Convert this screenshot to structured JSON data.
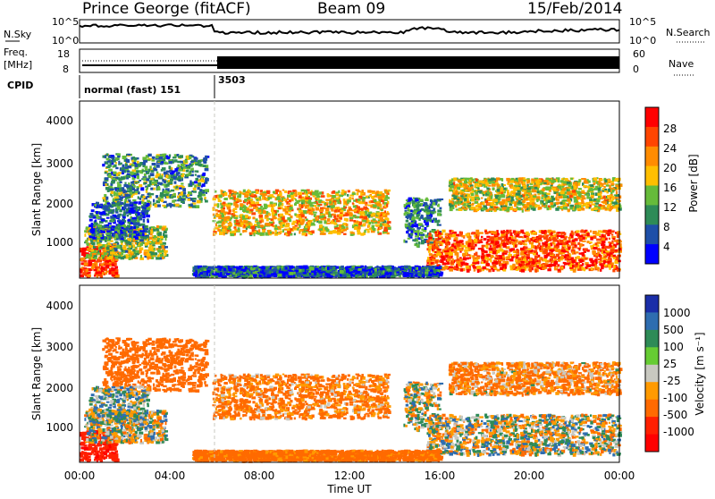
{
  "header": {
    "station": "Prince George (fitACF)",
    "beam": "Beam 09",
    "date": "15/Feb/2014"
  },
  "colors": {
    "power_scale": [
      "#0000ff",
      "#1e4fa8",
      "#2e8b57",
      "#66bb3a",
      "#ffbf00",
      "#ff8c00",
      "#ff4500",
      "#ff0000"
    ],
    "velocity_scale": [
      "#1a2ea8",
      "#2e6db0",
      "#2e8b57",
      "#66cc33",
      "#c8c8c0",
      "#ff9a00",
      "#ff6a00",
      "#ff2000",
      "#ff0000"
    ],
    "ground_scatter": "#c8c8c0"
  },
  "top_panels": {
    "nsky_label": "N.Sky",
    "nsearch_label": "N.Search",
    "noise_ticks": [
      "10^5",
      "10^0"
    ],
    "freq_label_1": "Freq.",
    "freq_label_2": "[MHz]",
    "freq_ticks": [
      "18",
      "8"
    ],
    "nave_label": "Nave",
    "nave_ticks": [
      "60",
      "0"
    ],
    "cpid_label": "CPID",
    "cpid_segments": [
      {
        "start_hour": 0,
        "label": "normal (fast) 151"
      },
      {
        "start_hour": 6.0,
        "label": "3503"
      }
    ]
  },
  "power_panel": {
    "ylabel": "Slant Range [km]",
    "y_ticks": [
      "4000",
      "3000",
      "2000",
      "1000"
    ],
    "colorbar_label": "Power [dB]",
    "colorbar_ticks": [
      "28",
      "24",
      "20",
      "16",
      "12",
      "8",
      "4"
    ]
  },
  "velocity_panel": {
    "ylabel": "Slant Range [km]",
    "y_ticks": [
      "4000",
      "3000",
      "2000",
      "1000"
    ],
    "colorbar_label": "Velocity [m s⁻¹]",
    "colorbar_ticks": [
      "1000",
      "500",
      "100",
      "25",
      "-25",
      "-100",
      "-500",
      "-1000"
    ]
  },
  "x_axis": {
    "ticks": [
      "00:00",
      "04:00",
      "08:00",
      "12:00",
      "16:00",
      "20:00",
      "00:00"
    ],
    "label": "Time UT"
  },
  "chart_data": {
    "type": "heatmap",
    "x_range_hours": [
      0,
      24
    ],
    "y_range_km": [
      180,
      4600
    ],
    "power_range_db": [
      0,
      30
    ],
    "velocity_range_ms": [
      -1000,
      1000
    ],
    "regions": [
      {
        "x": [
          0.0,
          1.6
        ],
        "y": [
          250,
          1000
        ],
        "power": 26,
        "velocity": -900
      },
      {
        "x": [
          0.2,
          3.8
        ],
        "y": [
          700,
          1500
        ],
        "power": 14,
        "velocity": 0
      },
      {
        "x": [
          1.0,
          5.6
        ],
        "y": [
          2000,
          3300
        ],
        "power": 10,
        "velocity": -300
      },
      {
        "x": [
          0.4,
          3.0
        ],
        "y": [
          1200,
          2100
        ],
        "power": 6,
        "velocity": 50
      },
      {
        "x": [
          5.9,
          13.7
        ],
        "y": [
          1300,
          2400
        ],
        "power": 18,
        "velocity": -150
      },
      {
        "x": [
          14.4,
          16.0
        ],
        "y": [
          1000,
          2200
        ],
        "power": 8,
        "velocity": 0
      },
      {
        "x": [
          15.4,
          24.0
        ],
        "y": [
          400,
          1400
        ],
        "power": 24,
        "velocity": 0
      },
      {
        "x": [
          16.4,
          24.0
        ],
        "y": [
          1900,
          2700
        ],
        "power": 16,
        "velocity": -120
      },
      {
        "x": [
          5.0,
          16.0
        ],
        "y": [
          250,
          500
        ],
        "power": 6,
        "velocity": -200
      }
    ]
  }
}
